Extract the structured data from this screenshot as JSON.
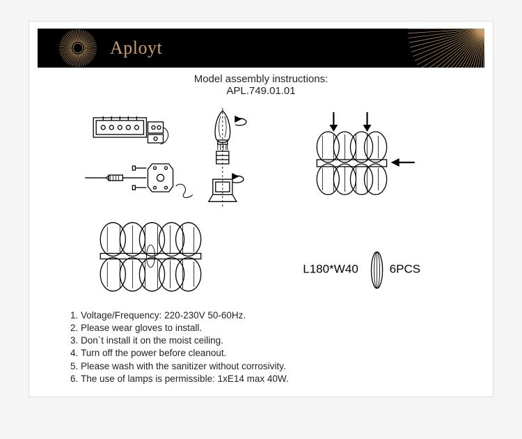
{
  "brand": {
    "name": "Aployt",
    "banner_bg": "#000000",
    "accent_color": "#c9a06a"
  },
  "title": {
    "line1": "Model assembly instructions:",
    "line2": "APL.749.01.01"
  },
  "diagram": {
    "dimension_label": "L180*W40",
    "pieces_label": "6PCS",
    "stroke_color": "#000000",
    "stroke_width": 1.3
  },
  "instructions": [
    "Voltage/Frequency: 220-230V 50-60Hz.",
    "Please wear gloves to install.",
    "Don`t install it on the moist ceiling.",
    "Turn off the power before cleanout.",
    "Please wash with the sanitizer without corrosivity.",
    "The use of lamps is permissible: 1xE14 max 40W."
  ],
  "instructions_fontsize": 13.5,
  "title_fontsize": 15
}
